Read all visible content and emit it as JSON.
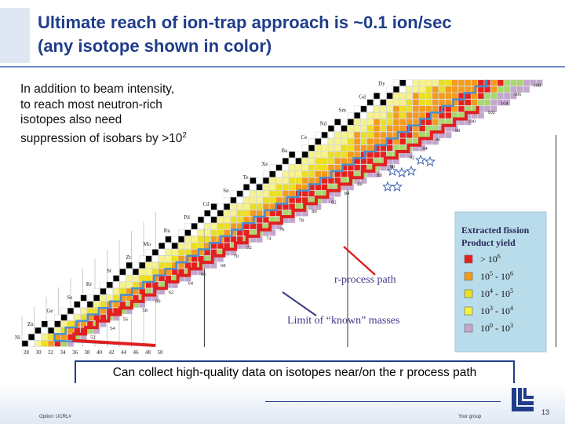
{
  "slide": {
    "title_line1": "Ultimate reach of ion-trap approach is ~0.1 ion/sec",
    "title_line2": "(any isotope shown in color)",
    "intro_line1": "In addition to beam intensity,",
    "intro_line2": "to reach most neutron-rich",
    "intro_line3": "isotopes also need",
    "intro_line4_pre": "suppression of isobars by >10",
    "intro_line4_sup": "2",
    "caption": "Can collect high-quality data on isotopes near/on the r process path",
    "page_number": "13",
    "footer_left": "Option: UCRL#",
    "footer_right": "Your group"
  },
  "chart": {
    "element_labels": [
      "Dy",
      "Gd",
      "Sm",
      "Nd",
      "Ce",
      "Ba",
      "Xe",
      "Te",
      "Sn",
      "Cd",
      "Pd",
      "Ru",
      "Mo",
      "Zr",
      "Sr",
      "Kr",
      "Se",
      "Ge",
      "Zn",
      "Ni"
    ],
    "n_labels_bottom": [
      "28",
      "30",
      "32",
      "34",
      "36",
      "38",
      "40",
      "42",
      "44",
      "46",
      "48",
      "50"
    ],
    "n_labels_diag": [
      "52",
      "54",
      "56",
      "58",
      "60",
      "62",
      "64",
      "66",
      "68",
      "70",
      "72",
      "74",
      "76",
      "78",
      "80",
      "82",
      "84",
      "86",
      "88",
      "90",
      "92",
      "94",
      "96",
      "98",
      "100",
      "102",
      "104",
      "106",
      "108"
    ],
    "annotation_r_process": "r-process  path",
    "annotation_known": "Limit of “known” masses",
    "legend_title_line1": "Extracted fission",
    "legend_title_line2": "Product  yield",
    "legend_items": [
      {
        "base": "> 10",
        "sup": "6",
        "color": "#e8201c"
      },
      {
        "base": "10",
        "sup": "5",
        "mid": " - 10",
        "sup2": "6",
        "color": "#f59a1a"
      },
      {
        "base": "10",
        "sup": "4",
        "mid": " - 10",
        "sup2": "5",
        "color": "#ecdf20"
      },
      {
        "base": "10",
        "sup": "3",
        "mid": " - 10",
        "sup2": "4",
        "color": "#f5f23a"
      },
      {
        "base": "10",
        "sup": "0",
        "mid": " - 10",
        "sup2": "3",
        "color": "#c4a6cf"
      }
    ],
    "colors": {
      "red": "#e8201c",
      "orange": "#f59a1a",
      "yellow": "#ecdf20",
      "lightyellow": "#f7f38c",
      "green": "#a9d86b",
      "violet": "#c4a6cf",
      "stable": "#000000",
      "known_line": "#4a8fd0",
      "path": "#e02020",
      "legend_bg": "#b8dcea"
    }
  }
}
